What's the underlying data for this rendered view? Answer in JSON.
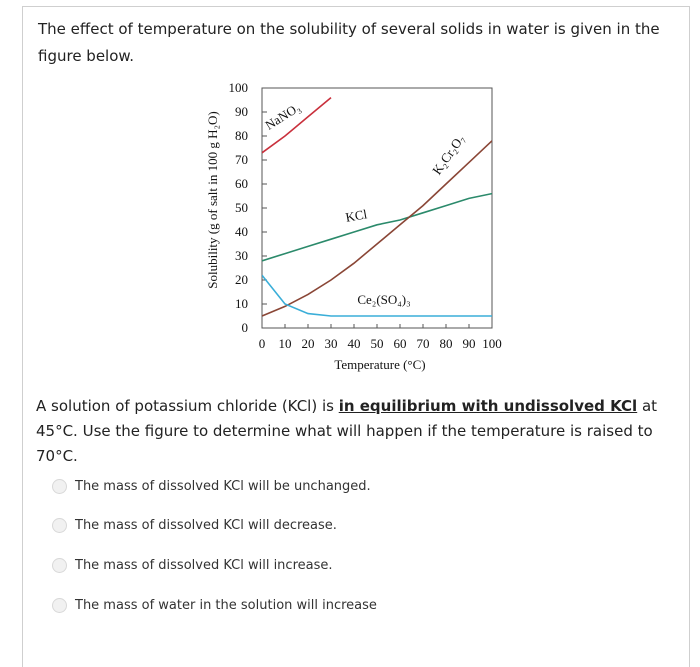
{
  "intro": "The effect of temperature on the solubility of several solids in water is given in the figure below.",
  "chart_data": {
    "type": "line",
    "x_label": "Temperature (°C)",
    "y_label": "Solubility (g of salt in 100 g H₂O)",
    "x": [
      0,
      10,
      20,
      30,
      40,
      50,
      60,
      70,
      80,
      90,
      100
    ],
    "xlim": [
      0,
      100
    ],
    "ylim": [
      0,
      100
    ],
    "xticks": [
      0,
      10,
      20,
      30,
      40,
      50,
      60,
      70,
      80,
      90,
      100
    ],
    "yticks": [
      0,
      10,
      20,
      30,
      40,
      50,
      60,
      70,
      80,
      90,
      100
    ],
    "series": [
      {
        "name": "NaNO₃",
        "color": "#c9303c",
        "values": [
          73,
          80,
          88,
          96,
          null,
          null,
          null,
          null,
          null,
          null,
          null
        ]
      },
      {
        "name": "KCl",
        "color": "#2b8a6b",
        "values": [
          28,
          31,
          34,
          37,
          40,
          43,
          45,
          48,
          51,
          54,
          56
        ]
      },
      {
        "name": "K₂Cr₂O₇",
        "color": "#8a4636",
        "values": [
          5,
          9,
          14,
          20,
          27,
          35,
          43,
          51,
          60,
          69,
          78
        ]
      },
      {
        "name": "Ce₂(SO₄)₃",
        "color": "#3aaed8",
        "values": [
          22,
          10,
          6,
          5,
          5,
          5,
          5,
          5,
          5,
          5,
          5
        ]
      }
    ]
  },
  "question": {
    "before": "A solution of potassium chloride (KCl) is ",
    "emphasis": "in equilibrium with undissolved KCl",
    "after": " at 45°C. Use the figure to determine what will happen if the temperature is raised to 70°C."
  },
  "answer_options": [
    "The mass of dissolved KCl will be unchanged.",
    "The mass of dissolved KCl will decrease.",
    "The mass of dissolved KCl will increase.",
    "The mass of water in the solution will increase"
  ]
}
